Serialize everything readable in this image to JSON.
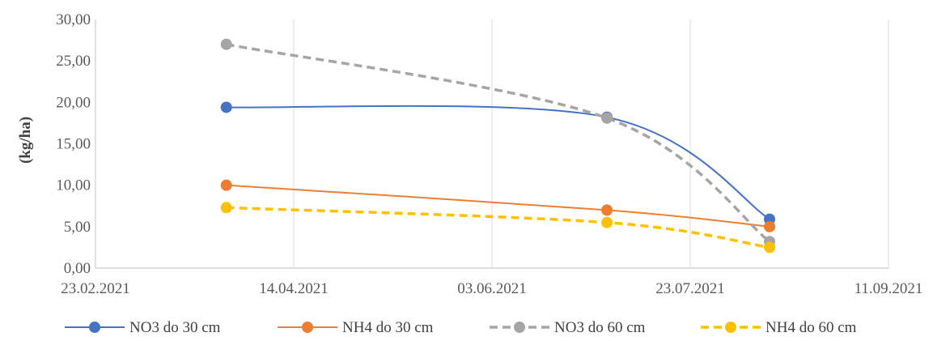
{
  "chart_data": {
    "type": "line",
    "title": "",
    "xlabel": "",
    "ylabel": "(kg/ha)",
    "x_ticks": [
      "23.02.2021",
      "14.04.2021",
      "03.06.2021",
      "23.07.2021",
      "11.09.2021"
    ],
    "x_range": [
      "2021-02-23",
      "2021-09-11"
    ],
    "y_ticks": [
      "0,00",
      "5,00",
      "10,00",
      "15,00",
      "20,00",
      "25,00",
      "30,00"
    ],
    "ylim": [
      0,
      30
    ],
    "grid": "vertical",
    "legend_position": "bottom",
    "x": [
      "2021-03-28",
      "2021-07-02",
      "2021-08-12"
    ],
    "series": [
      {
        "name": "NO3 do 30 cm",
        "color": "#4472C4",
        "dashed": false,
        "values": [
          19.4,
          18.2,
          5.9
        ]
      },
      {
        "name": "NH4 do 30 cm",
        "color": "#ED7D31",
        "dashed": false,
        "values": [
          10.0,
          7.0,
          5.0
        ]
      },
      {
        "name": "NO3 do 60 cm",
        "color": "#A5A5A5",
        "dashed": true,
        "values": [
          27.0,
          18.1,
          3.2
        ]
      },
      {
        "name": "NH4 do 60 cm",
        "color": "#FFC000",
        "dashed": true,
        "values": [
          7.3,
          5.5,
          2.5
        ]
      }
    ]
  }
}
